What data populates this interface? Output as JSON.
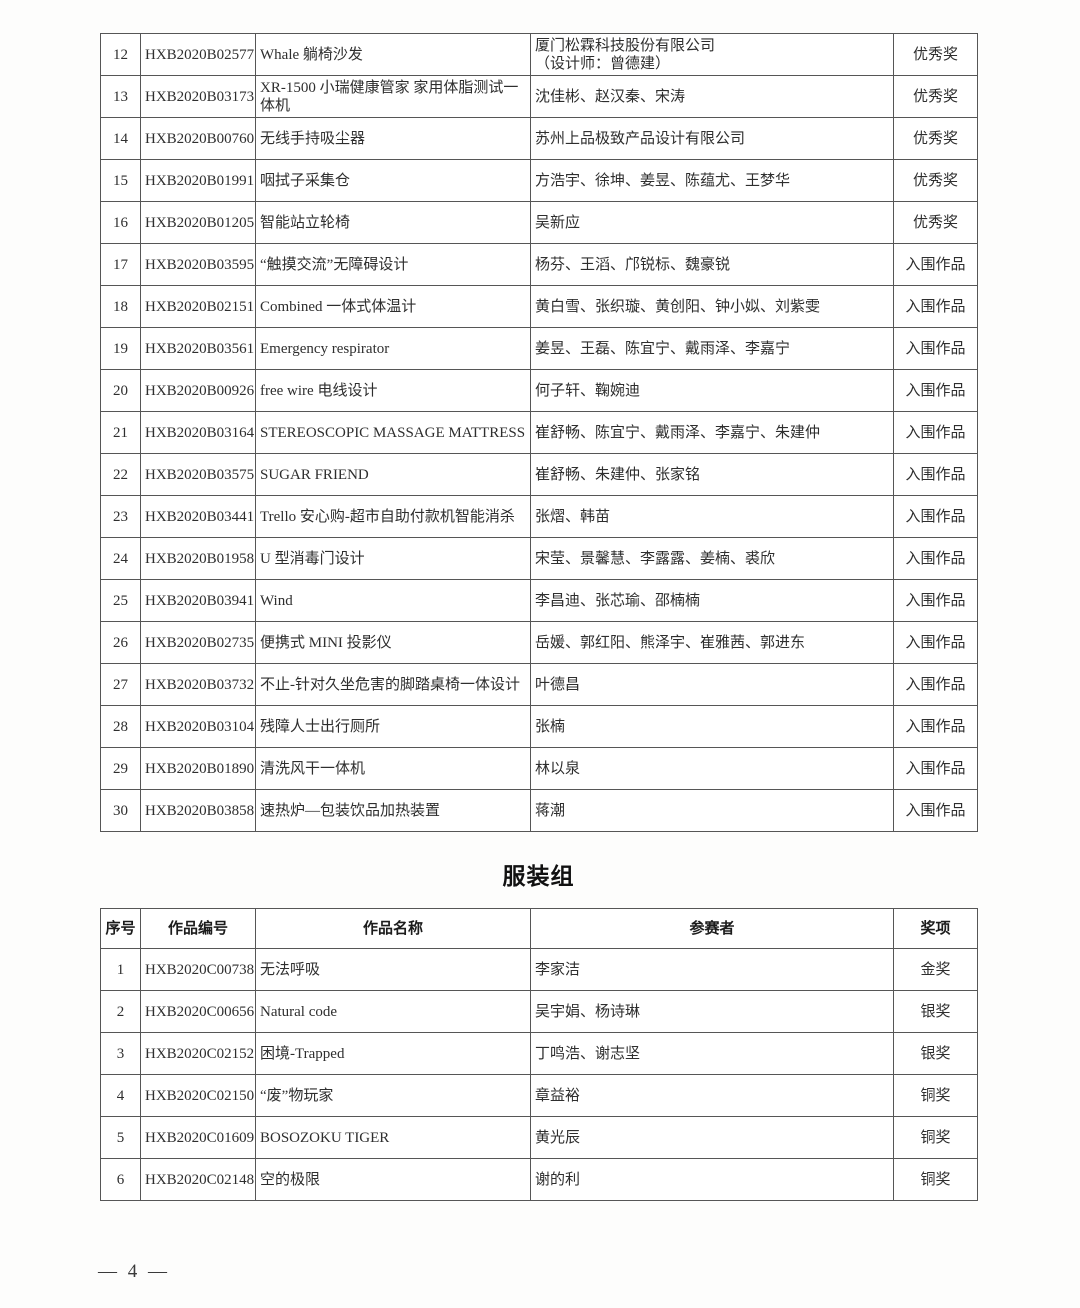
{
  "page": {
    "footer": "— 4 —"
  },
  "product_table": {
    "rows": [
      {
        "no": "12",
        "code": "HXB2020B02577",
        "title": "Whale 躺椅沙发",
        "participants": "厦门松霖科技股份有限公司\n（设计师：曾德建）",
        "award": "优秀奖"
      },
      {
        "no": "13",
        "code": "HXB2020B03173",
        "title": "XR-1500 小瑞健康管家 家用体脂测试一体机",
        "participants": "沈佳彬、赵汉秦、宋涛",
        "award": "优秀奖"
      },
      {
        "no": "14",
        "code": "HXB2020B00760",
        "title": "无线手持吸尘器",
        "participants": "苏州上品极致产品设计有限公司",
        "award": "优秀奖"
      },
      {
        "no": "15",
        "code": "HXB2020B01991",
        "title": "咽拭子采集仓",
        "participants": "方浩宇、徐坤、姜昱、陈蕴尤、王梦华",
        "award": "优秀奖"
      },
      {
        "no": "16",
        "code": "HXB2020B01205",
        "title": "智能站立轮椅",
        "participants": "吴新应",
        "award": "优秀奖"
      },
      {
        "no": "17",
        "code": "HXB2020B03595",
        "title": "“触摸交流”无障碍设计",
        "participants": "杨芬、王滔、邝锐标、魏豪锐",
        "award": "入围作品"
      },
      {
        "no": "18",
        "code": "HXB2020B02151",
        "title": "Combined 一体式体温计",
        "participants": "黄白雪、张织璇、黄创阳、钟小姒、刘紫雯",
        "award": "入围作品"
      },
      {
        "no": "19",
        "code": "HXB2020B03561",
        "title": "Emergency respirator",
        "participants": "姜昱、王磊、陈宜宁、戴雨泽、李嘉宁",
        "award": "入围作品"
      },
      {
        "no": "20",
        "code": "HXB2020B00926",
        "title": "free wire 电线设计",
        "participants": "何子轩、鞠婉迪",
        "award": "入围作品"
      },
      {
        "no": "21",
        "code": "HXB2020B03164",
        "title": "STEREOSCOPIC  MASSAGE MATTRESS",
        "participants": "崔舒畅、陈宜宁、戴雨泽、李嘉宁、朱建仲",
        "award": "入围作品"
      },
      {
        "no": "22",
        "code": "HXB2020B03575",
        "title": "SUGAR FRIEND",
        "participants": "崔舒畅、朱建仲、张家铭",
        "award": "入围作品"
      },
      {
        "no": "23",
        "code": "HXB2020B03441",
        "title": "Trello 安心购-超市自助付款机智能消杀",
        "participants": "张熠、韩苗",
        "award": "入围作品"
      },
      {
        "no": "24",
        "code": "HXB2020B01958",
        "title": "U 型消毒门设计",
        "participants": "宋莹、景馨慧、李露露、姜楠、裘欣",
        "award": "入围作品"
      },
      {
        "no": "25",
        "code": "HXB2020B03941",
        "title": "Wind",
        "participants": "李昌迪、张芯瑜、邵楠楠",
        "award": "入围作品"
      },
      {
        "no": "26",
        "code": "HXB2020B02735",
        "title": "便携式 MINI 投影仪",
        "participants": "岳媛、郭红阳、熊泽宇、崔雅茜、郭进东",
        "award": "入围作品"
      },
      {
        "no": "27",
        "code": "HXB2020B03732",
        "title": "不止-针对久坐危害的脚踏桌椅一体设计",
        "participants": "叶德昌",
        "award": "入围作品"
      },
      {
        "no": "28",
        "code": "HXB2020B03104",
        "title": "残障人士出行厕所",
        "participants": "张楠",
        "award": "入围作品"
      },
      {
        "no": "29",
        "code": "HXB2020B01890",
        "title": "清洗风干一体机",
        "participants": "林以泉",
        "award": "入围作品"
      },
      {
        "no": "30",
        "code": "HXB2020B03858",
        "title": "速热炉—包装饮品加热装置",
        "participants": "蒋潮",
        "award": "入围作品"
      }
    ]
  },
  "clothing_section": {
    "title": "服装组",
    "header": {
      "no": "序号",
      "code": "作品编号",
      "title": "作品名称",
      "participants": "参赛者",
      "award": "奖项"
    },
    "rows": [
      {
        "no": "1",
        "code": "HXB2020C00738",
        "title": "无法呼吸",
        "participants": "李家洁",
        "award": "金奖"
      },
      {
        "no": "2",
        "code": "HXB2020C00656",
        "title": "Natural code",
        "participants": "吴宇娟、杨诗琳",
        "award": "银奖"
      },
      {
        "no": "3",
        "code": "HXB2020C02152",
        "title": "困境-Trapped",
        "participants": "丁鸣浩、谢志坚",
        "award": "银奖"
      },
      {
        "no": "4",
        "code": "HXB2020C02150",
        "title": "“废”物玩家",
        "participants": "章益裕",
        "award": "铜奖"
      },
      {
        "no": "5",
        "code": "HXB2020C01609",
        "title": "BOSOZOKU TIGER",
        "participants": "黄光辰",
        "award": "铜奖"
      },
      {
        "no": "6",
        "code": "HXB2020C02148",
        "title": "空的极限",
        "participants": "谢的利",
        "award": "铜奖"
      }
    ]
  }
}
